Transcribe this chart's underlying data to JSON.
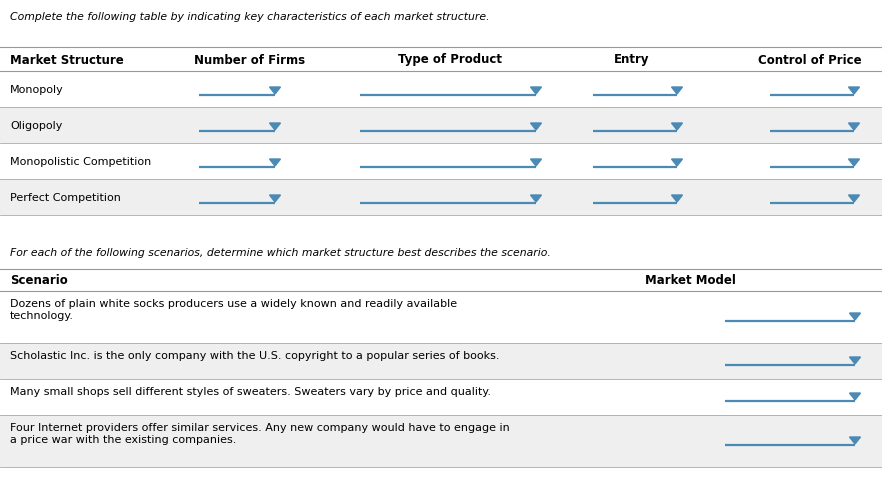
{
  "title1": "Complete the following table by indicating key characteristics of each market structure.",
  "title2": "For each of the following scenarios, determine which market structure best describes the scenario.",
  "table1_headers": [
    "Market Structure",
    "Number of Firms",
    "Type of Product",
    "Entry",
    "Control of Price"
  ],
  "table1_rows": [
    "Monopoly",
    "Oligopoly",
    "Monopolistic Competition",
    "Perfect Competition"
  ],
  "table2_headers": [
    "Scenario",
    "Market Model"
  ],
  "table2_rows": [
    "Dozens of plain white socks producers use a widely known and readily available\ntechnology.",
    "Scholastic Inc. is the only company with the U.S. copyright to a popular series of books.",
    "Many small shops sell different styles of sweaters. Sweaters vary by price and quality.",
    "Four Internet providers offer similar services. Any new company would have to engage in\na price war with the existing companies."
  ],
  "bg_white": "#ffffff",
  "bg_gray": "#efefef",
  "line_color": "#4a8ab5",
  "text_color": "#000000",
  "border_color": "#999999",
  "title_font_size": 7.8,
  "header_font_size": 8.5,
  "cell_font_size": 8.0
}
